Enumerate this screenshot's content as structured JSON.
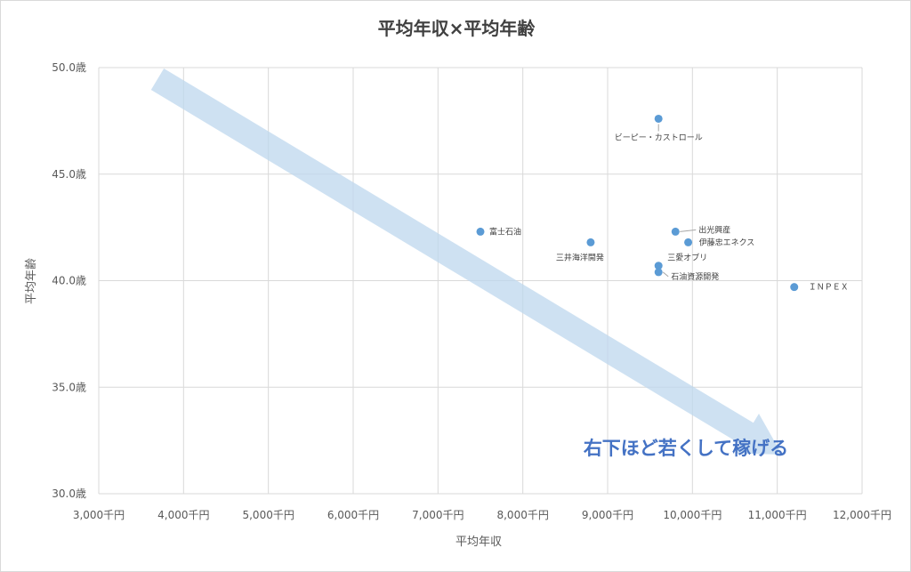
{
  "chart_data": {
    "type": "scatter",
    "title": "平均年収×平均年齢",
    "xlabel": "平均年収",
    "ylabel": "平均年齢",
    "xlim": [
      3000,
      12000
    ],
    "ylim": [
      30,
      50
    ],
    "x_ticks": [
      3000,
      4000,
      5000,
      6000,
      7000,
      8000,
      9000,
      10000,
      11000,
      12000
    ],
    "x_tick_labels": [
      "3,000千円",
      "4,000千円",
      "5,000千円",
      "6,000千円",
      "7,000千円",
      "8,000千円",
      "9,000千円",
      "10,000千円",
      "11,000千円",
      "12,000千円"
    ],
    "y_ticks": [
      30,
      35,
      40,
      45,
      50
    ],
    "y_tick_labels": [
      "30.0歳",
      "35.0歳",
      "40.0歳",
      "45.0歳",
      "50.0歳"
    ],
    "grid": true,
    "marker_color": "#5b9bd5",
    "arrow_color": "#bdd7ee",
    "annotation": "右下ほど若くして稼げる",
    "annotation_color": "#4472c4",
    "points": [
      {
        "label": "ビーピー・カストロール",
        "x": 9600,
        "y": 47.6
      },
      {
        "label": "富士石油",
        "x": 7500,
        "y": 42.3
      },
      {
        "label": "三井海洋開発",
        "x": 8800,
        "y": 41.8
      },
      {
        "label": "出光興産",
        "x": 9800,
        "y": 42.3
      },
      {
        "label": "伊藤忠エネクス",
        "x": 9950,
        "y": 41.8
      },
      {
        "label": "三愛オブリ",
        "x": 9600,
        "y": 40.7
      },
      {
        "label": "石油資源開発",
        "x": 9600,
        "y": 40.4
      },
      {
        "label": "ＩＮＰＥＸ",
        "x": 11200,
        "y": 39.7
      }
    ]
  }
}
